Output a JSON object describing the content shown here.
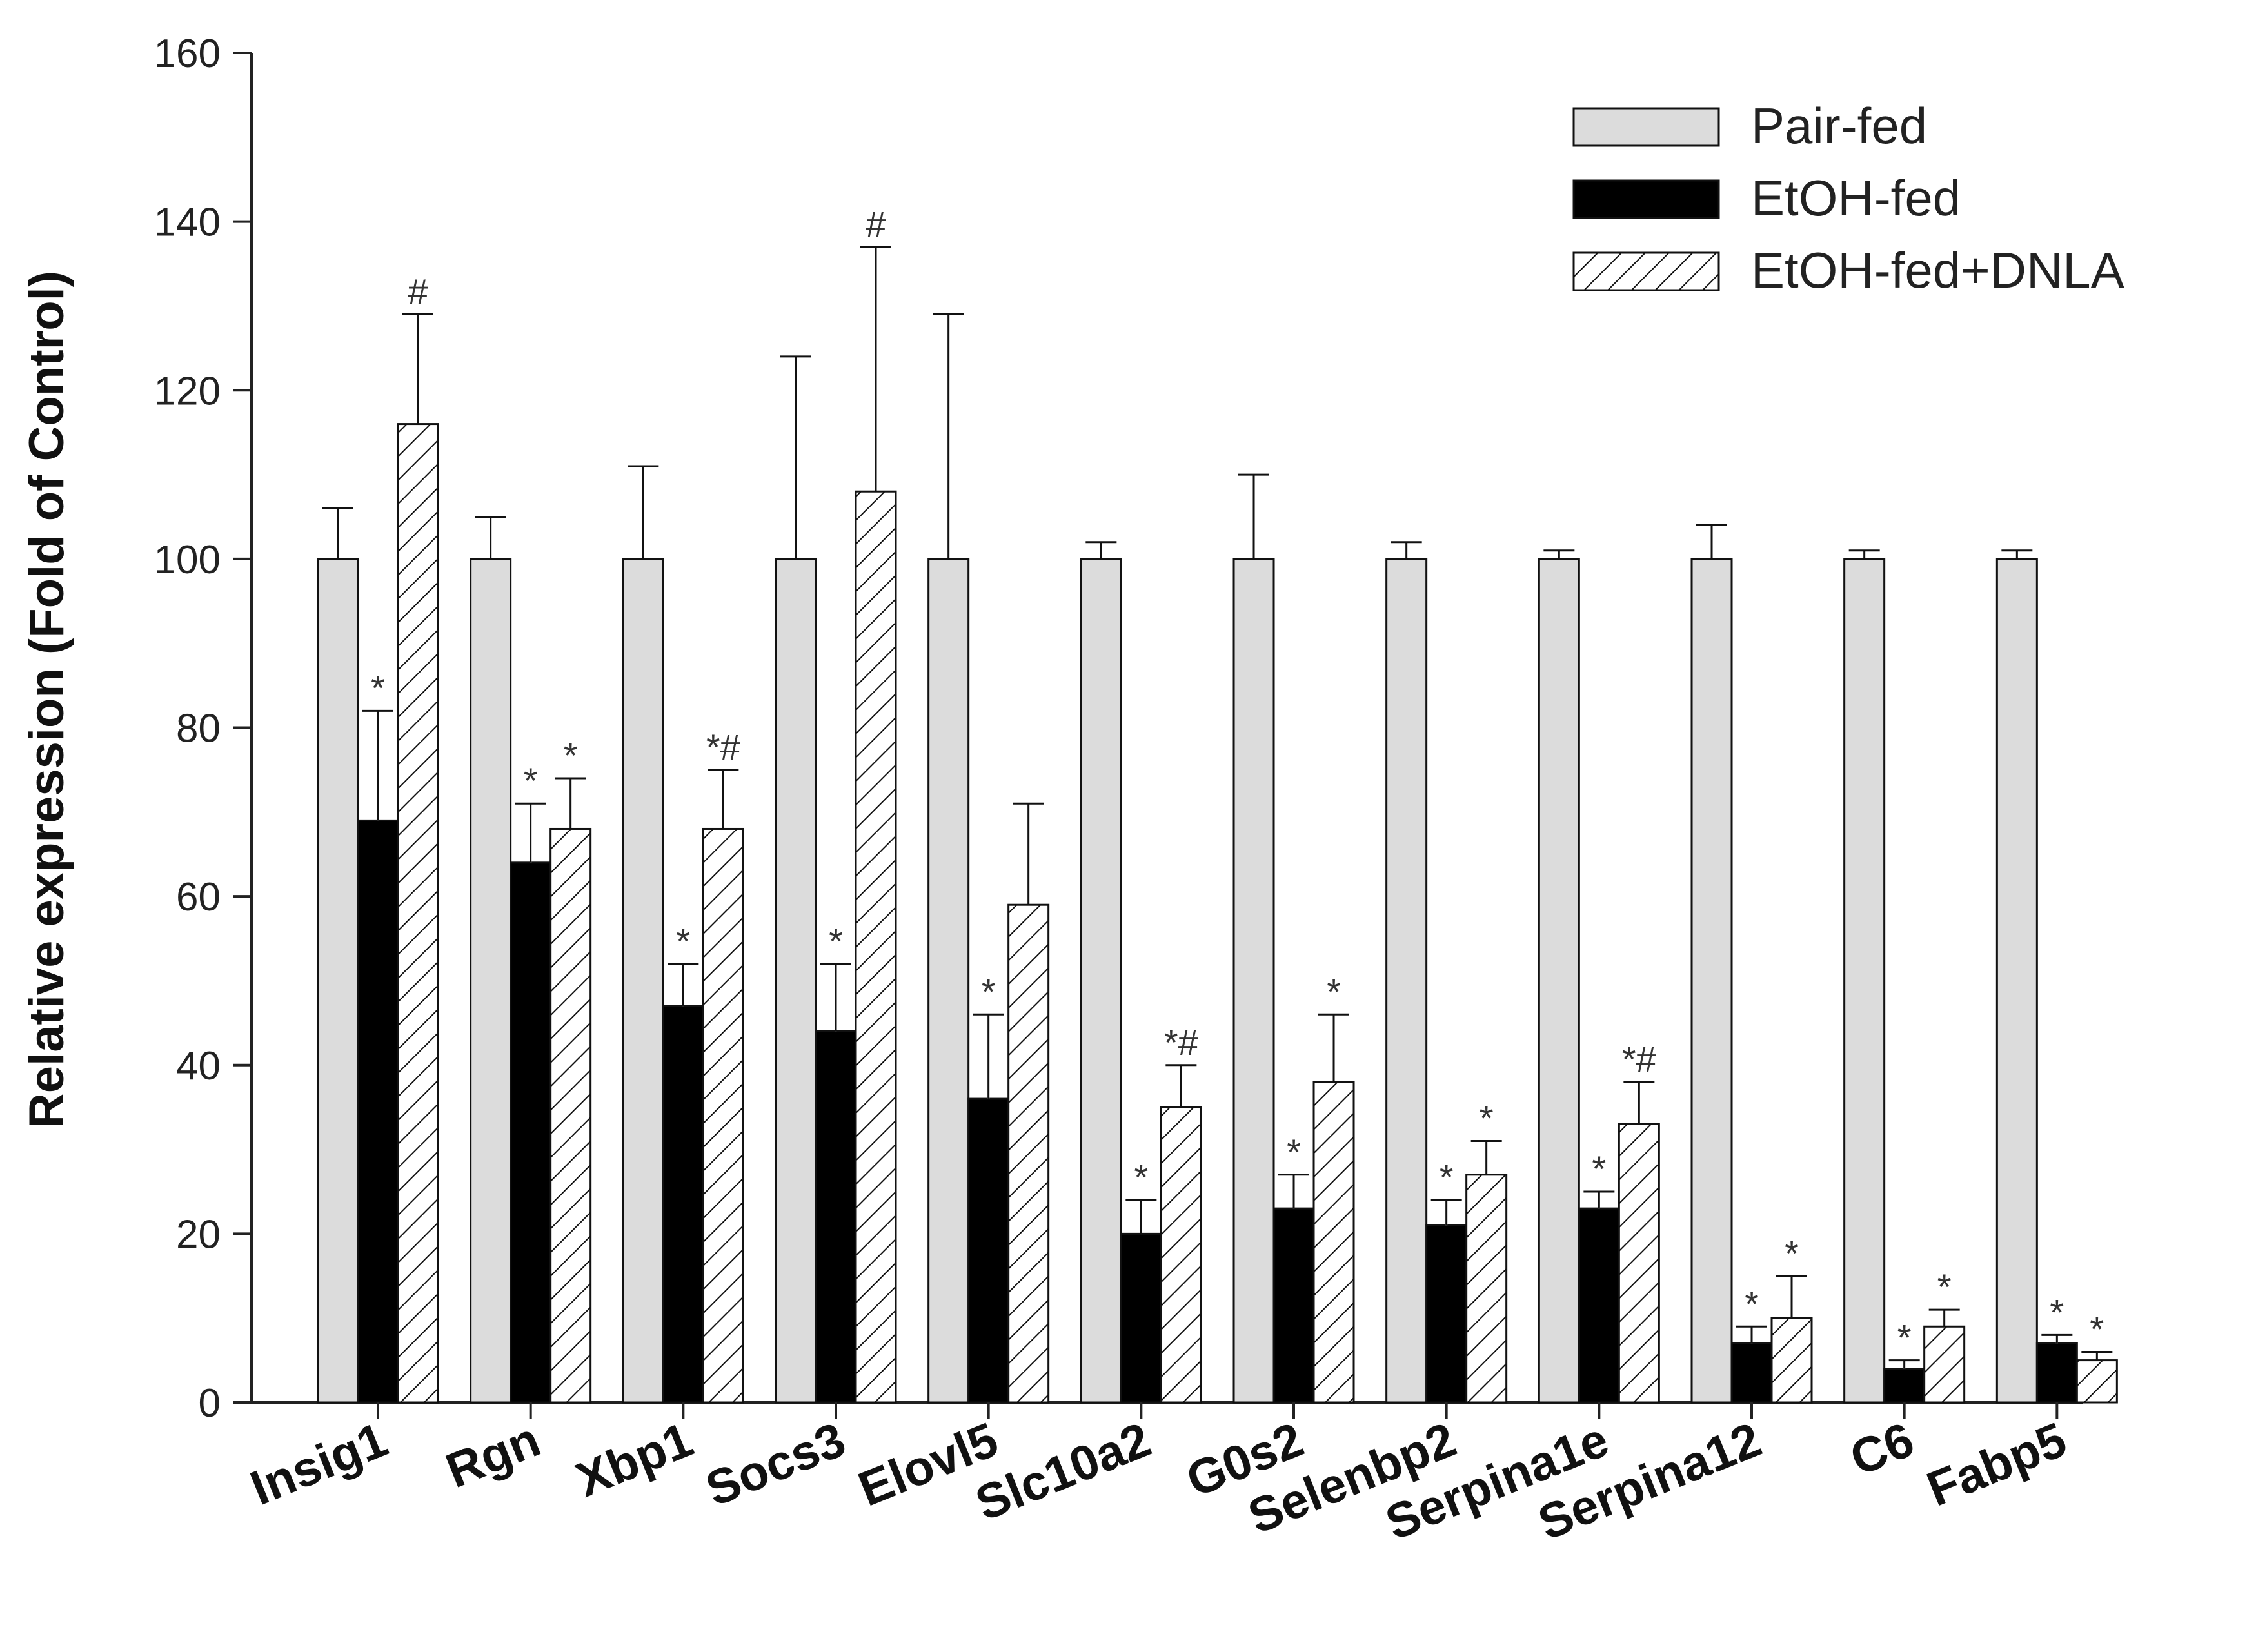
{
  "chart_data": {
    "type": "bar",
    "title": "",
    "xlabel": "",
    "ylabel": "Relative expression (Fold of Control)",
    "ylim": [
      0,
      160
    ],
    "yticks": [
      0,
      20,
      40,
      60,
      80,
      100,
      120,
      140,
      160
    ],
    "categories": [
      "Insig1",
      "Rgn",
      "Xbp1",
      "Socs3",
      "Elovl5",
      "Slc10a2",
      "G0s2",
      "Selenbp2",
      "Serpina1e",
      "Serpina12",
      "C6",
      "Fabp5"
    ],
    "series": [
      {
        "name": "Pair-fed",
        "fill": "light-gray",
        "values": [
          100,
          100,
          100,
          100,
          100,
          100,
          100,
          100,
          100,
          100,
          100,
          100
        ],
        "errors": [
          6,
          5,
          11,
          24,
          29,
          2,
          10,
          2,
          1,
          4,
          1,
          1
        ],
        "annotations": [
          "",
          "",
          "",
          "",
          "",
          "",
          "",
          "",
          "",
          "",
          "",
          ""
        ]
      },
      {
        "name": "EtOH-fed",
        "fill": "black",
        "values": [
          69,
          64,
          47,
          44,
          36,
          20,
          23,
          21,
          23,
          7,
          4,
          7
        ],
        "errors": [
          13,
          7,
          5,
          8,
          10,
          4,
          4,
          3,
          2,
          2,
          1,
          1
        ],
        "annotations": [
          "*",
          "*",
          "*",
          "*",
          "*",
          "*",
          "*",
          "*",
          "*",
          "*",
          "*",
          "*"
        ]
      },
      {
        "name": "EtOH-fed+DNLA",
        "fill": "hatched",
        "values": [
          116,
          68,
          68,
          108,
          59,
          35,
          38,
          27,
          33,
          10,
          9,
          5
        ],
        "errors": [
          13,
          6,
          7,
          29,
          12,
          5,
          8,
          4,
          5,
          5,
          2,
          1
        ],
        "annotations": [
          "#",
          "*",
          "*#",
          "#",
          "",
          "*#",
          "*",
          "*",
          "*#",
          "*",
          "*",
          "*"
        ]
      }
    ],
    "legend": {
      "position": "top-right"
    },
    "colors": {
      "pair_fed": "#dcdcdc",
      "etoh_fed": "#000000",
      "hatch": "#111111",
      "axis": "#222222"
    }
  }
}
